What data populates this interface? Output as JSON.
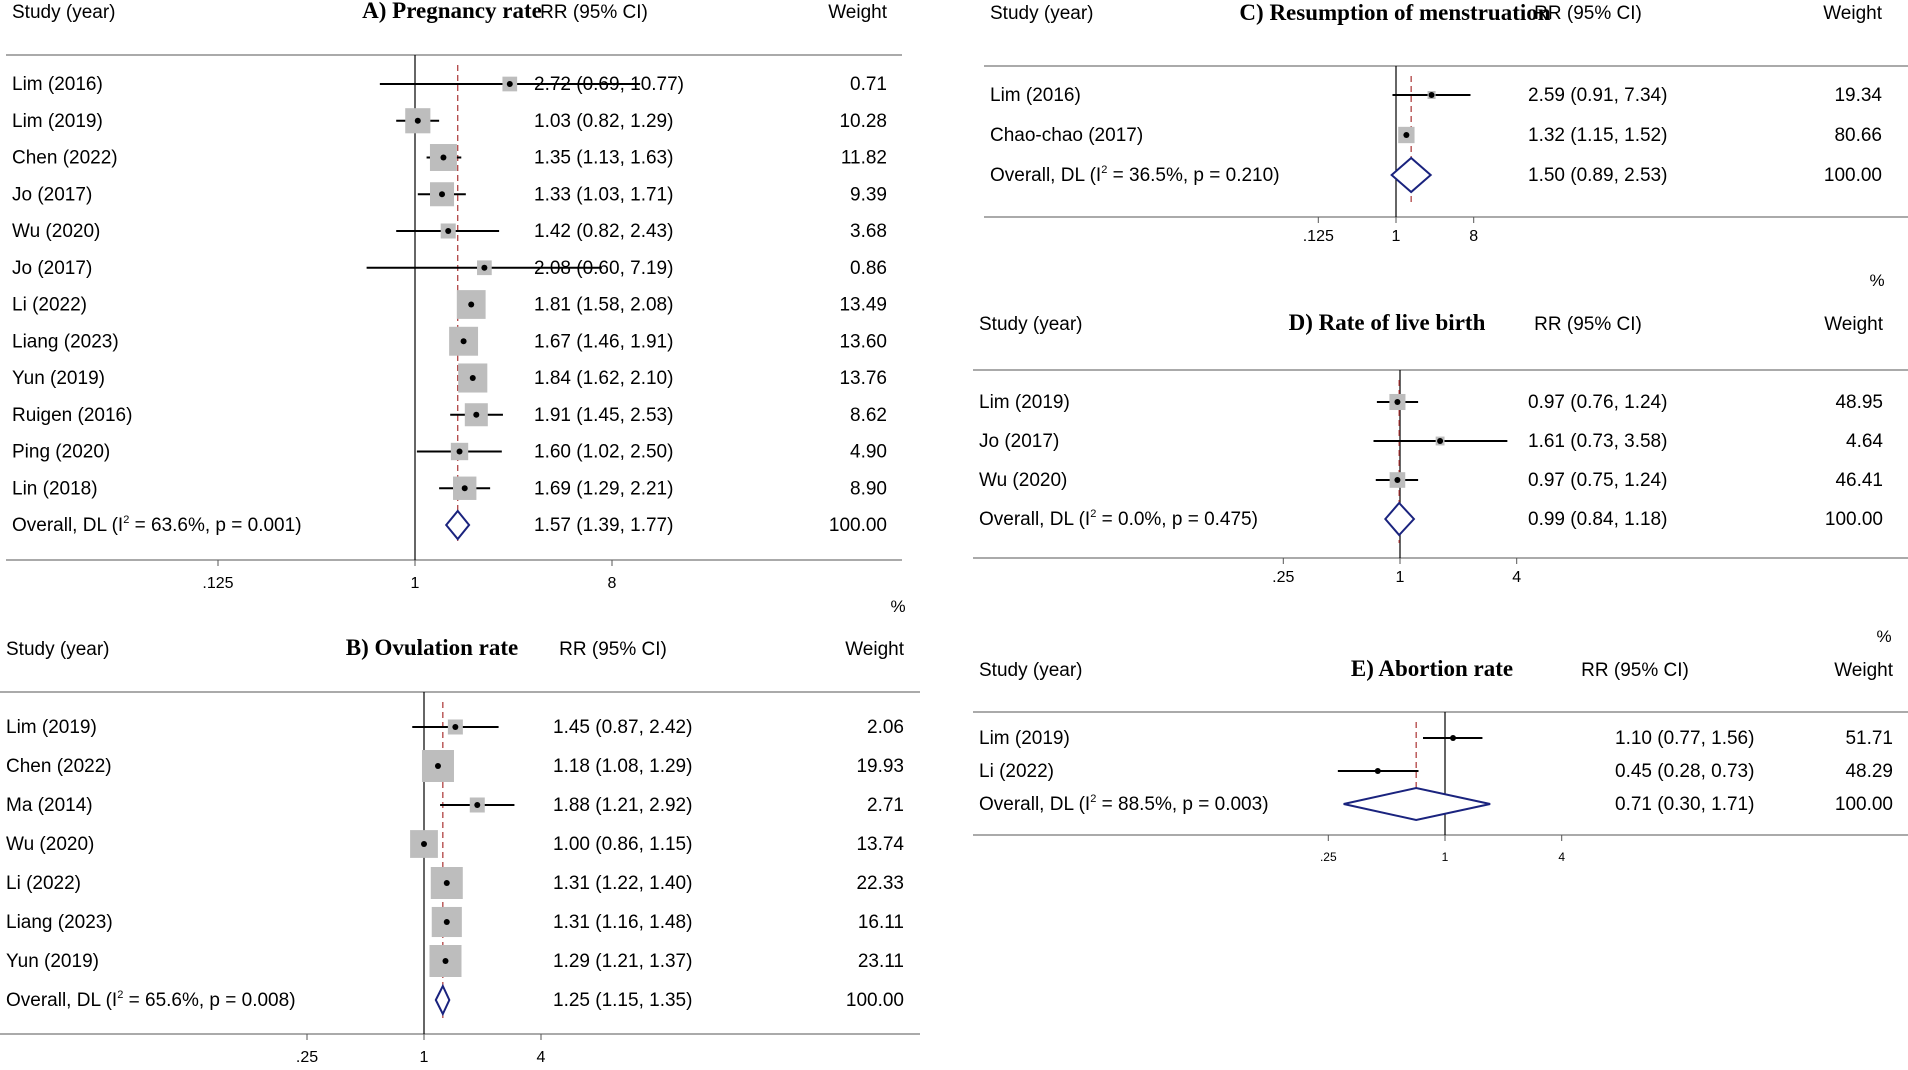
{
  "chart_data": [
    {
      "type": "forest",
      "title": "A) Pregnancy rate",
      "columns": {
        "study": "Study (year)",
        "effect": "RR (95% CI)",
        "weight": "Weight",
        "weight_unit": "%"
      },
      "axis": {
        "scale": "log2",
        "ticks": [
          0.125,
          1,
          8
        ],
        "tick_labels": [
          ".125",
          "1",
          "8"
        ],
        "xlim": [
          0.07,
          20
        ]
      },
      "null_line": 1,
      "rows": [
        {
          "study": "Lim (2016)",
          "rr": 2.72,
          "lo": 0.69,
          "hi": 10.77,
          "text": "2.72 (0.69, 10.77)",
          "weight": 0.71,
          "weight_text": "0.71"
        },
        {
          "study": "Lim (2019)",
          "rr": 1.03,
          "lo": 0.82,
          "hi": 1.29,
          "text": "1.03 (0.82, 1.29)",
          "weight": 10.28,
          "weight_text": "10.28"
        },
        {
          "study": "Chen (2022)",
          "rr": 1.35,
          "lo": 1.13,
          "hi": 1.63,
          "text": "1.35 (1.13, 1.63)",
          "weight": 11.82,
          "weight_text": "11.82"
        },
        {
          "study": "Jo (2017)",
          "rr": 1.33,
          "lo": 1.03,
          "hi": 1.71,
          "text": "1.33 (1.03, 1.71)",
          "weight": 9.39,
          "weight_text": "9.39"
        },
        {
          "study": "Wu (2020)",
          "rr": 1.42,
          "lo": 0.82,
          "hi": 2.43,
          "text": "1.42 (0.82, 2.43)",
          "weight": 3.68,
          "weight_text": "3.68"
        },
        {
          "study": "Jo (2017)",
          "rr": 2.08,
          "lo": 0.6,
          "hi": 7.19,
          "text": "2.08 (0.60, 7.19)",
          "weight": 0.86,
          "weight_text": "0.86"
        },
        {
          "study": "Li (2022)",
          "rr": 1.81,
          "lo": 1.58,
          "hi": 2.08,
          "text": "1.81 (1.58, 2.08)",
          "weight": 13.49,
          "weight_text": "13.49"
        },
        {
          "study": "Liang (2023)",
          "rr": 1.67,
          "lo": 1.46,
          "hi": 1.91,
          "text": "1.67 (1.46, 1.91)",
          "weight": 13.6,
          "weight_text": "13.60"
        },
        {
          "study": "Yun (2019)",
          "rr": 1.84,
          "lo": 1.62,
          "hi": 2.1,
          "text": "1.84 (1.62, 2.10)",
          "weight": 13.76,
          "weight_text": "13.76"
        },
        {
          "study": "Ruigen (2016)",
          "rr": 1.91,
          "lo": 1.45,
          "hi": 2.53,
          "text": "1.91 (1.45, 2.53)",
          "weight": 8.62,
          "weight_text": "8.62"
        },
        {
          "study": "Ping (2020)",
          "rr": 1.6,
          "lo": 1.02,
          "hi": 2.5,
          "text": "1.60 (1.02, 2.50)",
          "weight": 4.9,
          "weight_text": "4.90"
        },
        {
          "study": "Lin (2018)",
          "rr": 1.69,
          "lo": 1.29,
          "hi": 2.21,
          "text": "1.69 (1.29, 2.21)",
          "weight": 8.9,
          "weight_text": "8.90"
        }
      ],
      "overall": {
        "label_pre": "Overall, DL (I",
        "label_sup": "2",
        "label_post": " = 63.6%, p = 0.001)",
        "rr": 1.57,
        "lo": 1.39,
        "hi": 1.77,
        "text": "1.57 (1.39, 1.77)",
        "weight_text": "100.00"
      }
    },
    {
      "type": "forest",
      "title": "B) Ovulation rate",
      "columns": {
        "study": "Study (year)",
        "effect": "RR (95% CI)",
        "weight": "Weight"
      },
      "axis": {
        "scale": "log2",
        "ticks": [
          0.25,
          1,
          4
        ],
        "tick_labels": [
          ".25",
          "1",
          "4"
        ],
        "xlim": [
          0.149,
          6.5
        ]
      },
      "null_line": 1,
      "rows": [
        {
          "study": "Lim (2019)",
          "rr": 1.45,
          "lo": 0.87,
          "hi": 2.42,
          "text": "1.45 (0.87, 2.42)",
          "weight": 2.06,
          "weight_text": "2.06"
        },
        {
          "study": "Chen (2022)",
          "rr": 1.18,
          "lo": 1.08,
          "hi": 1.29,
          "text": "1.18 (1.08, 1.29)",
          "weight": 19.93,
          "weight_text": "19.93"
        },
        {
          "study": "Ma (2014)",
          "rr": 1.88,
          "lo": 1.21,
          "hi": 2.92,
          "text": "1.88 (1.21, 2.92)",
          "weight": 2.71,
          "weight_text": "2.71"
        },
        {
          "study": "Wu (2020)",
          "rr": 1.0,
          "lo": 0.86,
          "hi": 1.15,
          "text": "1.00 (0.86, 1.15)",
          "weight": 13.74,
          "weight_text": "13.74"
        },
        {
          "study": "Li (2022)",
          "rr": 1.31,
          "lo": 1.22,
          "hi": 1.4,
          "text": "1.31 (1.22, 1.40)",
          "weight": 22.33,
          "weight_text": "22.33"
        },
        {
          "study": "Liang (2023)",
          "rr": 1.31,
          "lo": 1.16,
          "hi": 1.48,
          "text": "1.31 (1.16, 1.48)",
          "weight": 16.11,
          "weight_text": "16.11"
        },
        {
          "study": "Yun (2019)",
          "rr": 1.29,
          "lo": 1.21,
          "hi": 1.37,
          "text": "1.29 (1.21, 1.37)",
          "weight": 23.11,
          "weight_text": "23.11"
        }
      ],
      "overall": {
        "label_pre": "Overall, DL (I",
        "label_sup": "2",
        "label_post": " = 65.6%, p = 0.008)",
        "rr": 1.25,
        "lo": 1.15,
        "hi": 1.35,
        "text": "1.25 (1.15, 1.35)",
        "weight_text": "100.00"
      }
    },
    {
      "type": "forest",
      "title": "C) Resumption of menstruation",
      "columns": {
        "study": "Study (year)",
        "effect": "RR (95% CI)",
        "weight": "Weight",
        "weight_unit": "%"
      },
      "axis": {
        "scale": "log2",
        "ticks": [
          0.125,
          1,
          8
        ],
        "tick_labels": [
          ".125",
          "1",
          "8"
        ],
        "xlim": [
          0.06,
          9
        ]
      },
      "null_line": 1,
      "rows": [
        {
          "study": "Lim (2016)",
          "rr": 2.59,
          "lo": 0.91,
          "hi": 7.34,
          "text": "2.59 (0.91, 7.34)",
          "weight": 19.34,
          "weight_text": "19.34"
        },
        {
          "study": "Chao-chao (2017)",
          "rr": 1.32,
          "lo": 1.15,
          "hi": 1.52,
          "text": "1.32 (1.15, 1.52)",
          "weight": 80.66,
          "weight_text": "80.66"
        }
      ],
      "overall": {
        "label_pre": "Overall, DL (I",
        "label_sup": "2",
        "label_post": " = 36.5%, p = 0.210)",
        "rr": 1.5,
        "lo": 0.89,
        "hi": 2.53,
        "text": "1.50 (0.89, 2.53)",
        "weight_text": "100.00"
      }
    },
    {
      "type": "forest",
      "title": "D) Rate of live birth",
      "columns": {
        "study": "Study (year)",
        "effect": "RR (95% CI)",
        "weight": "Weight",
        "weight_unit": "%"
      },
      "axis": {
        "scale": "log2",
        "ticks": [
          0.25,
          1,
          4
        ],
        "tick_labels": [
          ".25",
          "1",
          "4"
        ],
        "xlim": [
          0.15,
          5
        ]
      },
      "null_line": 1,
      "rows": [
        {
          "study": "Lim (2019)",
          "rr": 0.97,
          "lo": 0.76,
          "hi": 1.24,
          "text": "0.97 (0.76, 1.24)",
          "weight": 48.95,
          "weight_text": "48.95"
        },
        {
          "study": "Jo (2017)",
          "rr": 1.61,
          "lo": 0.73,
          "hi": 3.58,
          "text": "1.61 (0.73, 3.58)",
          "weight": 4.64,
          "weight_text": "4.64"
        },
        {
          "study": "Wu (2020)",
          "rr": 0.97,
          "lo": 0.75,
          "hi": 1.24,
          "text": "0.97 (0.75, 1.24)",
          "weight": 46.41,
          "weight_text": "46.41"
        }
      ],
      "overall": {
        "label_pre": "Overall, DL (I",
        "label_sup": "2",
        "label_post": " = 0.0%, p = 0.475)",
        "rr": 0.99,
        "lo": 0.84,
        "hi": 1.18,
        "text": "0.99 (0.84, 1.18)",
        "weight_text": "100.00"
      }
    },
    {
      "type": "forest",
      "title": "E) Abortion rate",
      "columns": {
        "study": "Study (year)",
        "effect": "RR (95% CI)",
        "weight": "Weight"
      },
      "axis": {
        "scale": "log2",
        "ticks": [
          0.25,
          1,
          4
        ],
        "tick_labels": [
          ".25",
          "1",
          "4"
        ],
        "xlim": [
          0.125,
          5.2
        ]
      },
      "null_line": 1,
      "rows": [
        {
          "study": "Lim (2019)",
          "rr": 1.1,
          "lo": 0.77,
          "hi": 1.56,
          "text": "1.10 (0.77, 1.56)",
          "weight": 51.71,
          "weight_text": "51.71"
        },
        {
          "study": "Li (2022)",
          "rr": 0.45,
          "lo": 0.28,
          "hi": 0.73,
          "text": "0.45 (0.28, 0.73)",
          "weight": 48.29,
          "weight_text": "48.29"
        }
      ],
      "overall": {
        "label_pre": "Overall, DL (I",
        "label_sup": "2",
        "label_post": " = 88.5%, p = 0.003)",
        "rr": 0.71,
        "lo": 0.3,
        "hi": 1.71,
        "text": "0.71 (0.30, 1.71)",
        "weight_text": "100.00"
      }
    }
  ]
}
